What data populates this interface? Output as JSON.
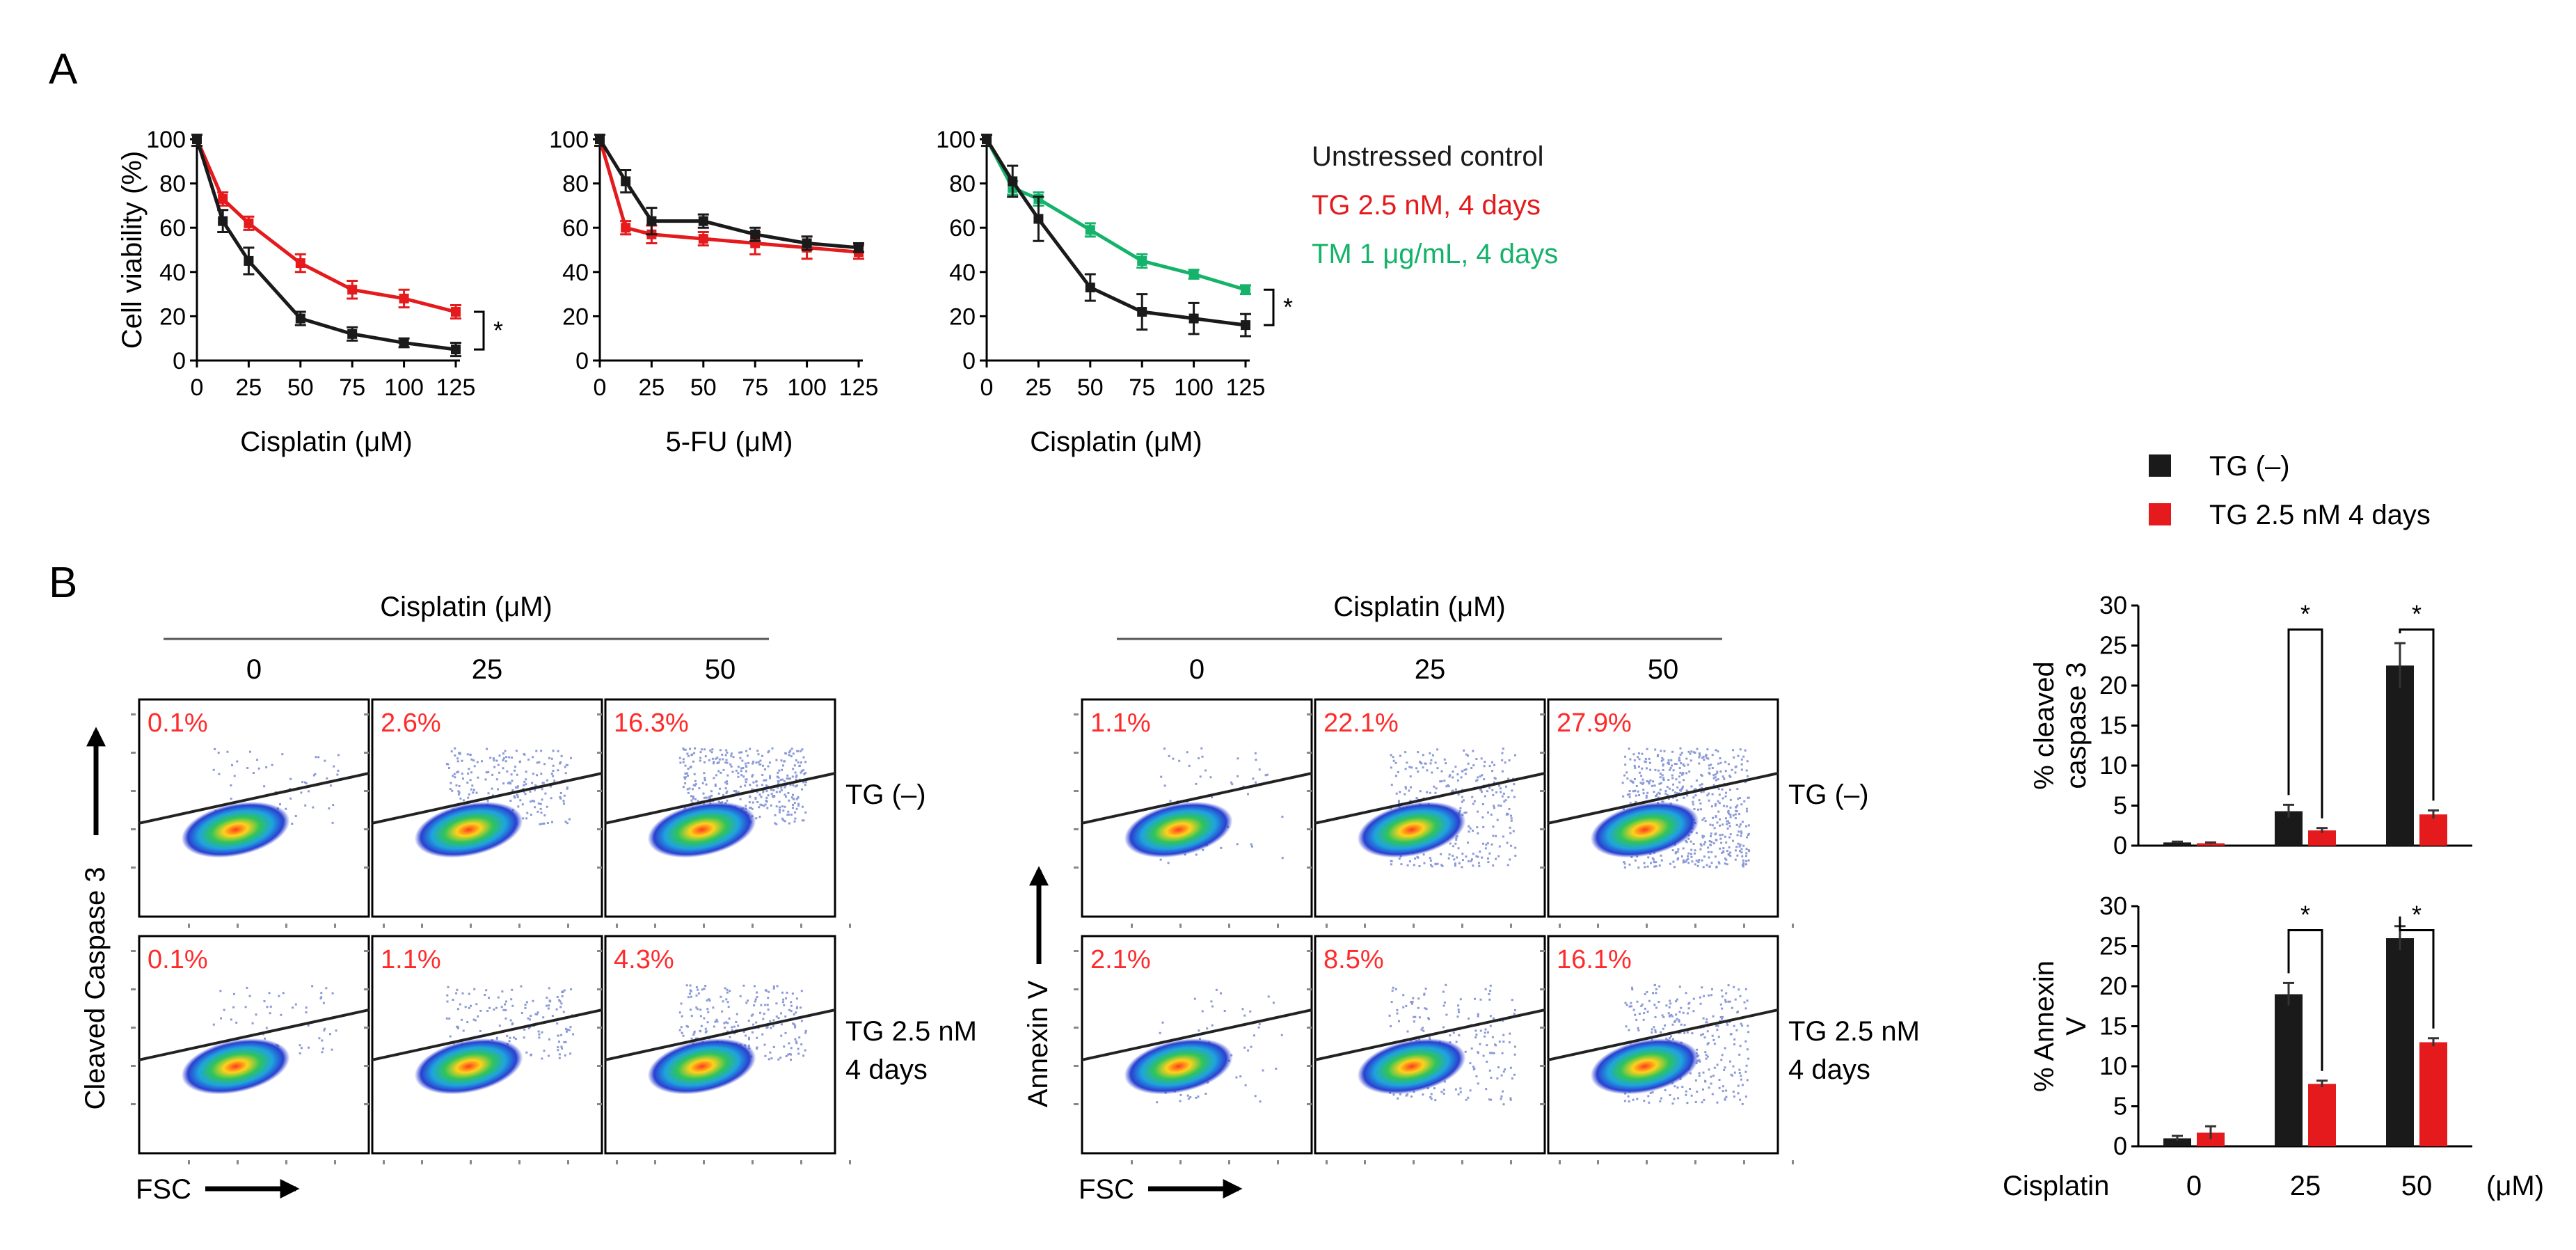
{
  "colors": {
    "black": "#1a1a1a",
    "red": "#e41a1c",
    "green": "#14b26a",
    "pct_red": "#ff2a2a"
  },
  "panel_a": {
    "label": "A",
    "legend": [
      {
        "name": "Unstressed control",
        "color": "#1a1a1a"
      },
      {
        "name": "TG 2.5 nM, 4 days",
        "color": "#e41a1c"
      },
      {
        "name": "TM 1 μg/mL, 4 days",
        "color": "#14b26a"
      }
    ],
    "significance": "*"
  },
  "chart_data": [
    {
      "type": "line",
      "ylabel": "Cell viability (%)",
      "xlabel": "Cisplatin (μM)",
      "x": [
        0,
        12.5,
        25,
        50,
        75,
        100,
        125
      ],
      "xticks": [
        0,
        25,
        50,
        75,
        100,
        125
      ],
      "yticks": [
        0,
        20,
        40,
        60,
        80,
        100
      ],
      "ylim": [
        0,
        100
      ],
      "xlim": [
        0,
        125
      ],
      "series": [
        {
          "name": "Unstressed control",
          "color": "#1a1a1a",
          "values": [
            100,
            63,
            45,
            19,
            12,
            8,
            5
          ],
          "err": [
            3,
            5,
            6,
            3,
            3,
            2,
            3
          ]
        },
        {
          "name": "TG 2.5 nM, 4 days",
          "color": "#e41a1c",
          "values": [
            100,
            73,
            62,
            44,
            32,
            28,
            22
          ],
          "err": [
            3,
            3,
            3,
            4,
            4,
            4,
            3
          ]
        }
      ],
      "significance": "*"
    },
    {
      "type": "line",
      "ylabel": "",
      "xlabel": "5-FU (μM)",
      "x": [
        0,
        12.5,
        25,
        50,
        75,
        100,
        125
      ],
      "xticks": [
        0,
        25,
        50,
        75,
        100,
        125
      ],
      "yticks": [
        0,
        20,
        40,
        60,
        80,
        100
      ],
      "ylim": [
        0,
        100
      ],
      "xlim": [
        0,
        125
      ],
      "series": [
        {
          "name": "Unstressed control",
          "color": "#1a1a1a",
          "values": [
            100,
            81,
            63,
            63,
            57,
            53,
            51
          ],
          "err": [
            3,
            5,
            6,
            3,
            3,
            3,
            2
          ]
        },
        {
          "name": "TG 2.5 nM, 4 days",
          "color": "#e41a1c",
          "values": [
            100,
            60,
            57,
            55,
            53,
            51,
            49
          ],
          "err": [
            3,
            3,
            4,
            3,
            5,
            5,
            3
          ]
        }
      ],
      "significance": ""
    },
    {
      "type": "line",
      "ylabel": "",
      "xlabel": "Cisplatin (μM)",
      "x": [
        0,
        12.5,
        25,
        50,
        75,
        100,
        125
      ],
      "xticks": [
        0,
        25,
        50,
        75,
        100,
        125
      ],
      "yticks": [
        0,
        20,
        40,
        60,
        80,
        100
      ],
      "ylim": [
        0,
        100
      ],
      "xlim": [
        0,
        125
      ],
      "series": [
        {
          "name": "Unstressed control",
          "color": "#1a1a1a",
          "values": [
            100,
            81,
            64,
            33,
            22,
            19,
            16
          ],
          "err": [
            3,
            7,
            10,
            6,
            8,
            7,
            5
          ]
        },
        {
          "name": "TM 1 μg/mL, 4 days",
          "color": "#14b26a",
          "values": [
            100,
            78,
            73,
            59,
            45,
            39,
            32
          ],
          "err": [
            3,
            3,
            3,
            3,
            3,
            2,
            2
          ]
        }
      ],
      "significance": "*"
    },
    {
      "type": "bar",
      "ylabel": "% cleaved caspase 3",
      "categories": [
        "0",
        "25",
        "50"
      ],
      "yticks": [
        0,
        5,
        10,
        15,
        20,
        25,
        30
      ],
      "ylim": [
        0,
        30
      ],
      "series": [
        {
          "name": "TG (–)",
          "color": "#1a1a1a",
          "values": [
            0.4,
            4.3,
            22.5
          ],
          "err": [
            0.1,
            0.8,
            2.8
          ]
        },
        {
          "name": "TG 2.5 nM 4 days",
          "color": "#e41a1c",
          "values": [
            0.3,
            1.9,
            3.9
          ],
          "err": [
            0.1,
            0.3,
            0.5
          ]
        }
      ],
      "significance": [
        "",
        "*",
        "*"
      ]
    },
    {
      "type": "bar",
      "ylabel": "% Annexin V",
      "categories": [
        "0",
        "25",
        "50"
      ],
      "xlabel_prefix": "Cisplatin",
      "xlabel_unit": "(μM)",
      "yticks": [
        0,
        5,
        10,
        15,
        20,
        25,
        30
      ],
      "ylim": [
        0,
        30
      ],
      "series": [
        {
          "name": "TG (–)",
          "color": "#1a1a1a",
          "values": [
            1.0,
            19.0,
            26.0
          ],
          "err": [
            0.3,
            1.4,
            1.5
          ]
        },
        {
          "name": "TG 2.5 nM 4 days",
          "color": "#e41a1c",
          "values": [
            1.7,
            7.8,
            13.0
          ],
          "err": [
            0.8,
            0.4,
            0.5
          ]
        }
      ],
      "significance": [
        "",
        "*",
        "*"
      ]
    }
  ],
  "panel_b": {
    "label": "B",
    "header": "Cisplatin (μM)",
    "doses": [
      "0",
      "25",
      "50"
    ],
    "row_labels": [
      [
        "TG (–)"
      ],
      [
        "TG 2.5 nM",
        "4 days"
      ]
    ],
    "fsc_label": "FSC",
    "caspase": {
      "ylabel": "Cleaved Caspase 3",
      "percentages": [
        [
          "0.1%",
          "2.6%",
          "16.3%"
        ],
        [
          "0.1%",
          "1.1%",
          "4.3%"
        ]
      ]
    },
    "annexin": {
      "ylabel": "Annexin V",
      "percentages": [
        [
          "1.1%",
          "22.1%",
          "27.9%"
        ],
        [
          "2.1%",
          "8.5%",
          "16.1%"
        ]
      ]
    },
    "bar_legend": [
      {
        "name": "TG (–)",
        "color": "#1a1a1a"
      },
      {
        "name": "TG 2.5 nM 4 days",
        "color": "#e41a1c"
      }
    ]
  }
}
